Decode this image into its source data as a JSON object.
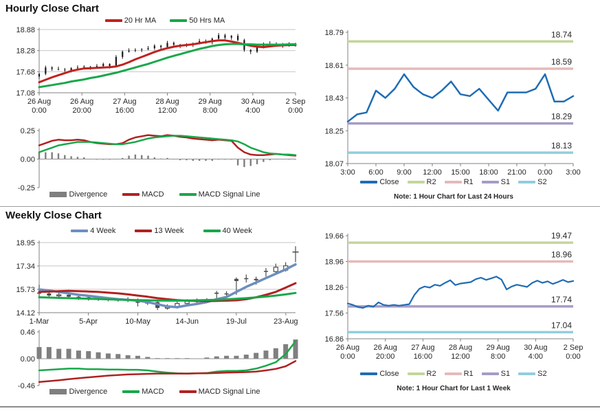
{
  "titles": {
    "hourly": "Hourly Close Chart",
    "weekly": "Weekly Close Chart"
  },
  "notes": {
    "hourly_pivot": "Note: 1 Hour Chart for Last 24 Hours",
    "weekly_pivot": "Note: 1 Hour Chart for Last 1 Week"
  },
  "colors": {
    "close_blue": "#1F6CB4",
    "ma20_red": "#C0221F",
    "ma50_green": "#19A74A",
    "macd_darkred": "#B02121",
    "macd_green": "#19A74A",
    "divergence_gray": "#7F7F7F",
    "ma4_blue": "#6D8EBF",
    "ma13_red": "#B02121",
    "ma40_green": "#19A74A",
    "r2_green": "#C3D69B",
    "r1_pink": "#E6B9B8",
    "s1_purple": "#A69BC6",
    "s2_cyan": "#92CDDC",
    "axis_gray": "#808080",
    "grid_gray": "#C6C6C6"
  },
  "legends": {
    "hourly_price": {
      "items": [
        {
          "label": "20 Hr MA",
          "color": "#C0221F"
        },
        {
          "label": "50 Hrs MA",
          "color": "#19A74A"
        }
      ]
    },
    "hourly_macd": {
      "items": [
        {
          "label": "Divergence",
          "color": "#7F7F7F"
        },
        {
          "label": "MACD",
          "color": "#B02121"
        },
        {
          "label": "MACD Signal Line",
          "color": "#19A74A"
        }
      ]
    },
    "pivot": {
      "items": [
        {
          "label": "Close",
          "color": "#1F6CB4"
        },
        {
          "label": "R2",
          "color": "#C3D69B"
        },
        {
          "label": "R1",
          "color": "#E6B9B8"
        },
        {
          "label": "S1",
          "color": "#A69BC6"
        },
        {
          "label": "S2",
          "color": "#92CDDC"
        }
      ]
    },
    "weekly_price": {
      "items": [
        {
          "label": "4 Week",
          "color": "#6D8EBF"
        },
        {
          "label": "13 Week",
          "color": "#B02121"
        },
        {
          "label": "40 Week",
          "color": "#19A74A"
        }
      ]
    },
    "weekly_macd": {
      "items": [
        {
          "label": "Divergence",
          "color": "#7F7F7F"
        },
        {
          "label": "MACD",
          "color": "#19A74A"
        },
        {
          "label": "MACD Signal Line",
          "color": "#B02121"
        }
      ]
    }
  },
  "chart_data": [
    {
      "type": "candlestick",
      "title": "Hourly Close Chart",
      "ylim": [
        17.08,
        18.88
      ],
      "yticks": [
        18.88,
        18.28,
        17.68,
        17.08
      ],
      "ydec": 2,
      "xticks": [
        "26 Aug|0:00",
        "26 Aug|20:00",
        "27 Aug|16:00",
        "28 Aug|12:00",
        "29 Aug|8:00",
        "30 Aug|4:00",
        "2 Sep|0:00"
      ],
      "candles_close": [
        17.62,
        17.8,
        17.76,
        17.74,
        17.72,
        17.78,
        17.8,
        17.82,
        17.8,
        17.84,
        17.9,
        17.84,
        18.1,
        18.25,
        18.28,
        18.3,
        18.32,
        18.35,
        18.42,
        18.38,
        18.5,
        18.45,
        18.42,
        18.44,
        18.48,
        18.55,
        18.52,
        18.62,
        18.72,
        18.65,
        18.7,
        18.58,
        18.3,
        18.25,
        18.4,
        18.48,
        18.45,
        18.47,
        18.42,
        18.46,
        18.44
      ],
      "lines": [
        {
          "name": "20 Hr MA",
          "color": "#C0221F",
          "width": 3,
          "values": [
            17.38,
            17.45,
            17.52,
            17.58,
            17.64,
            17.7,
            17.74,
            17.77,
            17.78,
            17.79,
            17.8,
            17.81,
            17.83,
            17.88,
            17.95,
            18.03,
            18.1,
            18.17,
            18.24,
            18.3,
            18.35,
            18.39,
            18.42,
            18.44,
            18.46,
            18.49,
            18.52,
            18.55,
            18.57,
            18.57,
            18.54,
            18.5,
            18.46,
            18.42,
            18.39,
            18.38,
            18.4,
            18.42,
            18.43,
            18.44,
            18.44
          ]
        },
        {
          "name": "50 Hrs MA",
          "color": "#19A74A",
          "width": 3,
          "values": [
            17.24,
            17.27,
            17.3,
            17.33,
            17.36,
            17.4,
            17.43,
            17.46,
            17.5,
            17.53,
            17.57,
            17.61,
            17.65,
            17.7,
            17.75,
            17.8,
            17.85,
            17.9,
            17.96,
            18.02,
            18.08,
            18.13,
            18.18,
            18.23,
            18.28,
            18.33,
            18.37,
            18.41,
            18.44,
            18.46,
            18.47,
            18.47,
            18.46,
            18.46,
            18.45,
            18.45,
            18.45,
            18.45,
            18.45,
            18.46,
            18.46
          ]
        }
      ]
    },
    {
      "type": "bar",
      "title": "Hourly MACD",
      "ylim": [
        -0.25,
        0.25
      ],
      "yticks": [
        0.25,
        0.0,
        -0.25
      ],
      "ydec": 2,
      "baseline": 0,
      "bars": [
        0.06,
        0.06,
        0.06,
        0.05,
        0.035,
        0.025,
        0.02,
        0.015,
        0.0,
        -0.005,
        -0.005,
        -0.005,
        0.0,
        0.01,
        0.03,
        0.04,
        0.035,
        0.03,
        0.015,
        0.005,
        0.01,
        0.0,
        -0.01,
        -0.01,
        -0.015,
        -0.015,
        -0.015,
        -0.015,
        -0.005,
        -0.005,
        -0.005,
        -0.055,
        -0.07,
        -0.06,
        -0.045,
        -0.025,
        -0.01,
        0.0,
        0.0,
        -0.005,
        -0.005
      ],
      "lines": [
        {
          "name": "MACD",
          "color": "#B02121",
          "width": 2.5,
          "values": [
            0.12,
            0.14,
            0.16,
            0.17,
            0.165,
            0.165,
            0.17,
            0.165,
            0.15,
            0.14,
            0.135,
            0.13,
            0.13,
            0.14,
            0.17,
            0.19,
            0.2,
            0.21,
            0.205,
            0.2,
            0.21,
            0.205,
            0.195,
            0.19,
            0.18,
            0.175,
            0.17,
            0.165,
            0.17,
            0.165,
            0.16,
            0.1,
            0.06,
            0.04,
            0.035,
            0.035,
            0.04,
            0.045,
            0.04,
            0.035,
            0.03
          ]
        },
        {
          "name": "MACD Signal Line",
          "color": "#19A74A",
          "width": 2.5,
          "values": [
            0.06,
            0.08,
            0.1,
            0.12,
            0.13,
            0.14,
            0.15,
            0.15,
            0.15,
            0.145,
            0.14,
            0.135,
            0.13,
            0.13,
            0.14,
            0.15,
            0.165,
            0.18,
            0.19,
            0.195,
            0.2,
            0.205,
            0.205,
            0.2,
            0.195,
            0.19,
            0.185,
            0.18,
            0.175,
            0.17,
            0.165,
            0.155,
            0.13,
            0.1,
            0.08,
            0.06,
            0.05,
            0.045,
            0.04,
            0.04,
            0.035
          ]
        }
      ]
    },
    {
      "type": "line",
      "title": "Hourly Pivot Chart",
      "ylim": [
        18.07,
        18.79
      ],
      "yticks": [
        18.79,
        18.61,
        18.43,
        18.25,
        18.07
      ],
      "ydec": 2,
      "xticks": [
        "3:00",
        "6:00",
        "9:00",
        "12:00",
        "15:00",
        "18:00",
        "21:00",
        "0:00",
        "3:00"
      ],
      "levels": [
        {
          "name": "R2",
          "value": 18.74,
          "color": "#C3D69B"
        },
        {
          "name": "R1",
          "value": 18.59,
          "color": "#E6B9B8"
        },
        {
          "name": "S1",
          "value": 18.29,
          "color": "#A69BC6"
        },
        {
          "name": "S2",
          "value": 18.13,
          "color": "#92CDDC"
        }
      ],
      "lines": [
        {
          "name": "Close",
          "color": "#1F6CB4",
          "width": 2.5,
          "values": [
            18.3,
            18.34,
            18.35,
            18.47,
            18.43,
            18.48,
            18.56,
            18.49,
            18.45,
            18.43,
            18.47,
            18.52,
            18.45,
            18.44,
            18.48,
            18.42,
            18.36,
            18.46,
            18.46,
            18.46,
            18.48,
            18.56,
            18.41,
            18.41,
            18.44
          ]
        }
      ],
      "note": "Note: 1 Hour Chart for Last 24 Hours"
    },
    {
      "type": "candlestick",
      "title": "Weekly Close Chart",
      "ylim": [
        14.12,
        18.95
      ],
      "yticks": [
        18.95,
        17.34,
        15.73,
        14.12
      ],
      "ydec": 2,
      "xticks": [
        "1-Mar",
        "5-Apr",
        "10-May",
        "14-Jun",
        "19-Jul",
        "23-Aug"
      ],
      "xtickfracs": [
        0,
        0.192,
        0.385,
        0.577,
        0.769,
        0.962
      ],
      "candles_ohlc": [
        [
          15.5,
          16.05,
          15.2,
          15.45
        ],
        [
          15.45,
          15.6,
          15.1,
          15.3
        ],
        [
          15.3,
          15.5,
          15.15,
          15.35
        ],
        [
          15.35,
          15.45,
          15.05,
          15.22
        ],
        [
          15.22,
          15.35,
          15.0,
          15.18
        ],
        [
          15.18,
          15.3,
          14.95,
          15.1
        ],
        [
          15.1,
          15.22,
          14.93,
          15.05
        ],
        [
          15.05,
          15.18,
          14.9,
          15.0
        ],
        [
          15.0,
          15.12,
          14.88,
          14.98
        ],
        [
          14.98,
          15.18,
          14.85,
          15.02
        ],
        [
          15.02,
          15.1,
          14.55,
          14.8
        ],
        [
          14.8,
          15.0,
          14.65,
          14.85
        ],
        [
          14.85,
          14.95,
          14.3,
          14.45
        ],
        [
          14.45,
          14.7,
          14.32,
          14.5
        ],
        [
          14.5,
          14.9,
          14.4,
          14.75
        ],
        [
          14.75,
          15.05,
          14.6,
          14.9
        ],
        [
          14.9,
          15.1,
          14.72,
          14.95
        ],
        [
          14.95,
          15.12,
          14.8,
          15.0
        ],
        [
          15.5,
          15.62,
          14.95,
          15.42
        ],
        [
          15.45,
          15.6,
          15.15,
          15.38
        ],
        [
          16.45,
          16.55,
          15.35,
          16.3
        ],
        [
          16.5,
          16.75,
          16.2,
          16.45
        ],
        [
          16.45,
          16.6,
          16.05,
          16.35
        ],
        [
          17.0,
          17.2,
          16.6,
          16.95
        ],
        [
          16.95,
          17.5,
          16.8,
          17.25
        ],
        [
          17.05,
          17.6,
          16.95,
          17.35
        ],
        [
          18.3,
          18.7,
          17.6,
          18.3
        ]
      ],
      "lines": [
        {
          "name": "4 Week",
          "color": "#6D8EBF",
          "width": 3.5,
          "values": [
            15.72,
            15.65,
            15.55,
            15.45,
            15.35,
            15.28,
            15.2,
            15.12,
            15.05,
            15.0,
            14.95,
            14.85,
            14.7,
            14.55,
            14.5,
            14.62,
            14.72,
            14.85,
            15.05,
            15.2,
            15.55,
            15.9,
            16.2,
            16.5,
            16.8,
            17.1,
            17.45
          ]
        },
        {
          "name": "13 Week",
          "color": "#B02121",
          "width": 3,
          "values": [
            15.55,
            15.57,
            15.6,
            15.62,
            15.6,
            15.58,
            15.55,
            15.5,
            15.45,
            15.38,
            15.3,
            15.22,
            15.12,
            15.05,
            14.98,
            14.95,
            14.93,
            14.92,
            14.93,
            14.95,
            14.97,
            15.05,
            15.18,
            15.35,
            15.55,
            15.85,
            16.15
          ]
        },
        {
          "name": "40 Week",
          "color": "#19A74A",
          "width": 3,
          "values": [
            15.18,
            15.16,
            15.14,
            15.12,
            15.1,
            15.08,
            15.06,
            15.04,
            15.02,
            15.0,
            14.98,
            14.97,
            14.96,
            14.95,
            14.95,
            14.96,
            14.97,
            14.99,
            15.01,
            15.04,
            15.08,
            15.12,
            15.17,
            15.23,
            15.3,
            15.38,
            15.48
          ]
        }
      ]
    },
    {
      "type": "bar",
      "title": "Weekly MACD",
      "ylim": [
        -0.46,
        0.46
      ],
      "yticks": [
        0.46,
        0.0,
        -0.46
      ],
      "ydec": 2,
      "baseline": 0,
      "bars": [
        0.2,
        0.2,
        0.17,
        0.17,
        0.14,
        0.13,
        0.11,
        0.09,
        0.08,
        0.06,
        0.05,
        0.03,
        0.01,
        0.01,
        0.01,
        0.01,
        0.005,
        0.02,
        0.04,
        0.05,
        0.05,
        0.07,
        0.1,
        0.14,
        0.18,
        0.25,
        0.33
      ],
      "lines": [
        {
          "name": "MACD",
          "color": "#19A74A",
          "width": 2.5,
          "values": [
            -0.2,
            -0.19,
            -0.18,
            -0.17,
            -0.17,
            -0.18,
            -0.18,
            -0.185,
            -0.185,
            -0.19,
            -0.19,
            -0.2,
            -0.22,
            -0.24,
            -0.25,
            -0.255,
            -0.25,
            -0.245,
            -0.22,
            -0.21,
            -0.21,
            -0.2,
            -0.17,
            -0.12,
            -0.06,
            0.08,
            0.3
          ]
        },
        {
          "name": "MACD Signal Line",
          "color": "#B02121",
          "width": 2.5,
          "values": [
            -0.4,
            -0.385,
            -0.37,
            -0.35,
            -0.335,
            -0.32,
            -0.305,
            -0.29,
            -0.28,
            -0.27,
            -0.265,
            -0.26,
            -0.255,
            -0.255,
            -0.255,
            -0.255,
            -0.25,
            -0.25,
            -0.245,
            -0.24,
            -0.235,
            -0.23,
            -0.22,
            -0.2,
            -0.175,
            -0.13,
            -0.04
          ]
        }
      ]
    },
    {
      "type": "line",
      "title": "Weekly Pivot Chart",
      "ylim": [
        16.86,
        19.66
      ],
      "yticks": [
        19.66,
        18.96,
        18.26,
        17.56,
        16.86
      ],
      "ydec": 2,
      "xticks": [
        "26 Aug|0:00",
        "26 Aug|20:00",
        "27 Aug|16:00",
        "28 Aug|12:00",
        "29 Aug|8:00",
        "30 Aug|4:00",
        "2 Sep|0:00"
      ],
      "levels": [
        {
          "name": "R2",
          "value": 19.47,
          "color": "#C3D69B"
        },
        {
          "name": "R1",
          "value": 18.96,
          "color": "#E6B9B8"
        },
        {
          "name": "S1",
          "value": 17.74,
          "color": "#A69BC6"
        },
        {
          "name": "S2",
          "value": 17.04,
          "color": "#92CDDC"
        }
      ],
      "lines": [
        {
          "name": "Close",
          "color": "#1F6CB4",
          "width": 2.2,
          "values": [
            17.82,
            17.78,
            17.72,
            17.7,
            17.76,
            17.73,
            17.85,
            17.78,
            17.76,
            17.78,
            17.76,
            17.78,
            17.8,
            18.05,
            18.22,
            18.28,
            18.25,
            18.33,
            18.3,
            18.38,
            18.45,
            18.32,
            18.36,
            18.38,
            18.4,
            18.48,
            18.52,
            18.46,
            18.5,
            18.55,
            18.47,
            18.2,
            18.28,
            18.33,
            18.3,
            18.27,
            18.38,
            18.44,
            18.38,
            18.42,
            18.35,
            18.4,
            18.46,
            18.4,
            18.43
          ]
        }
      ],
      "note": "Note: 1 Hour Chart for Last 1 Week"
    }
  ]
}
